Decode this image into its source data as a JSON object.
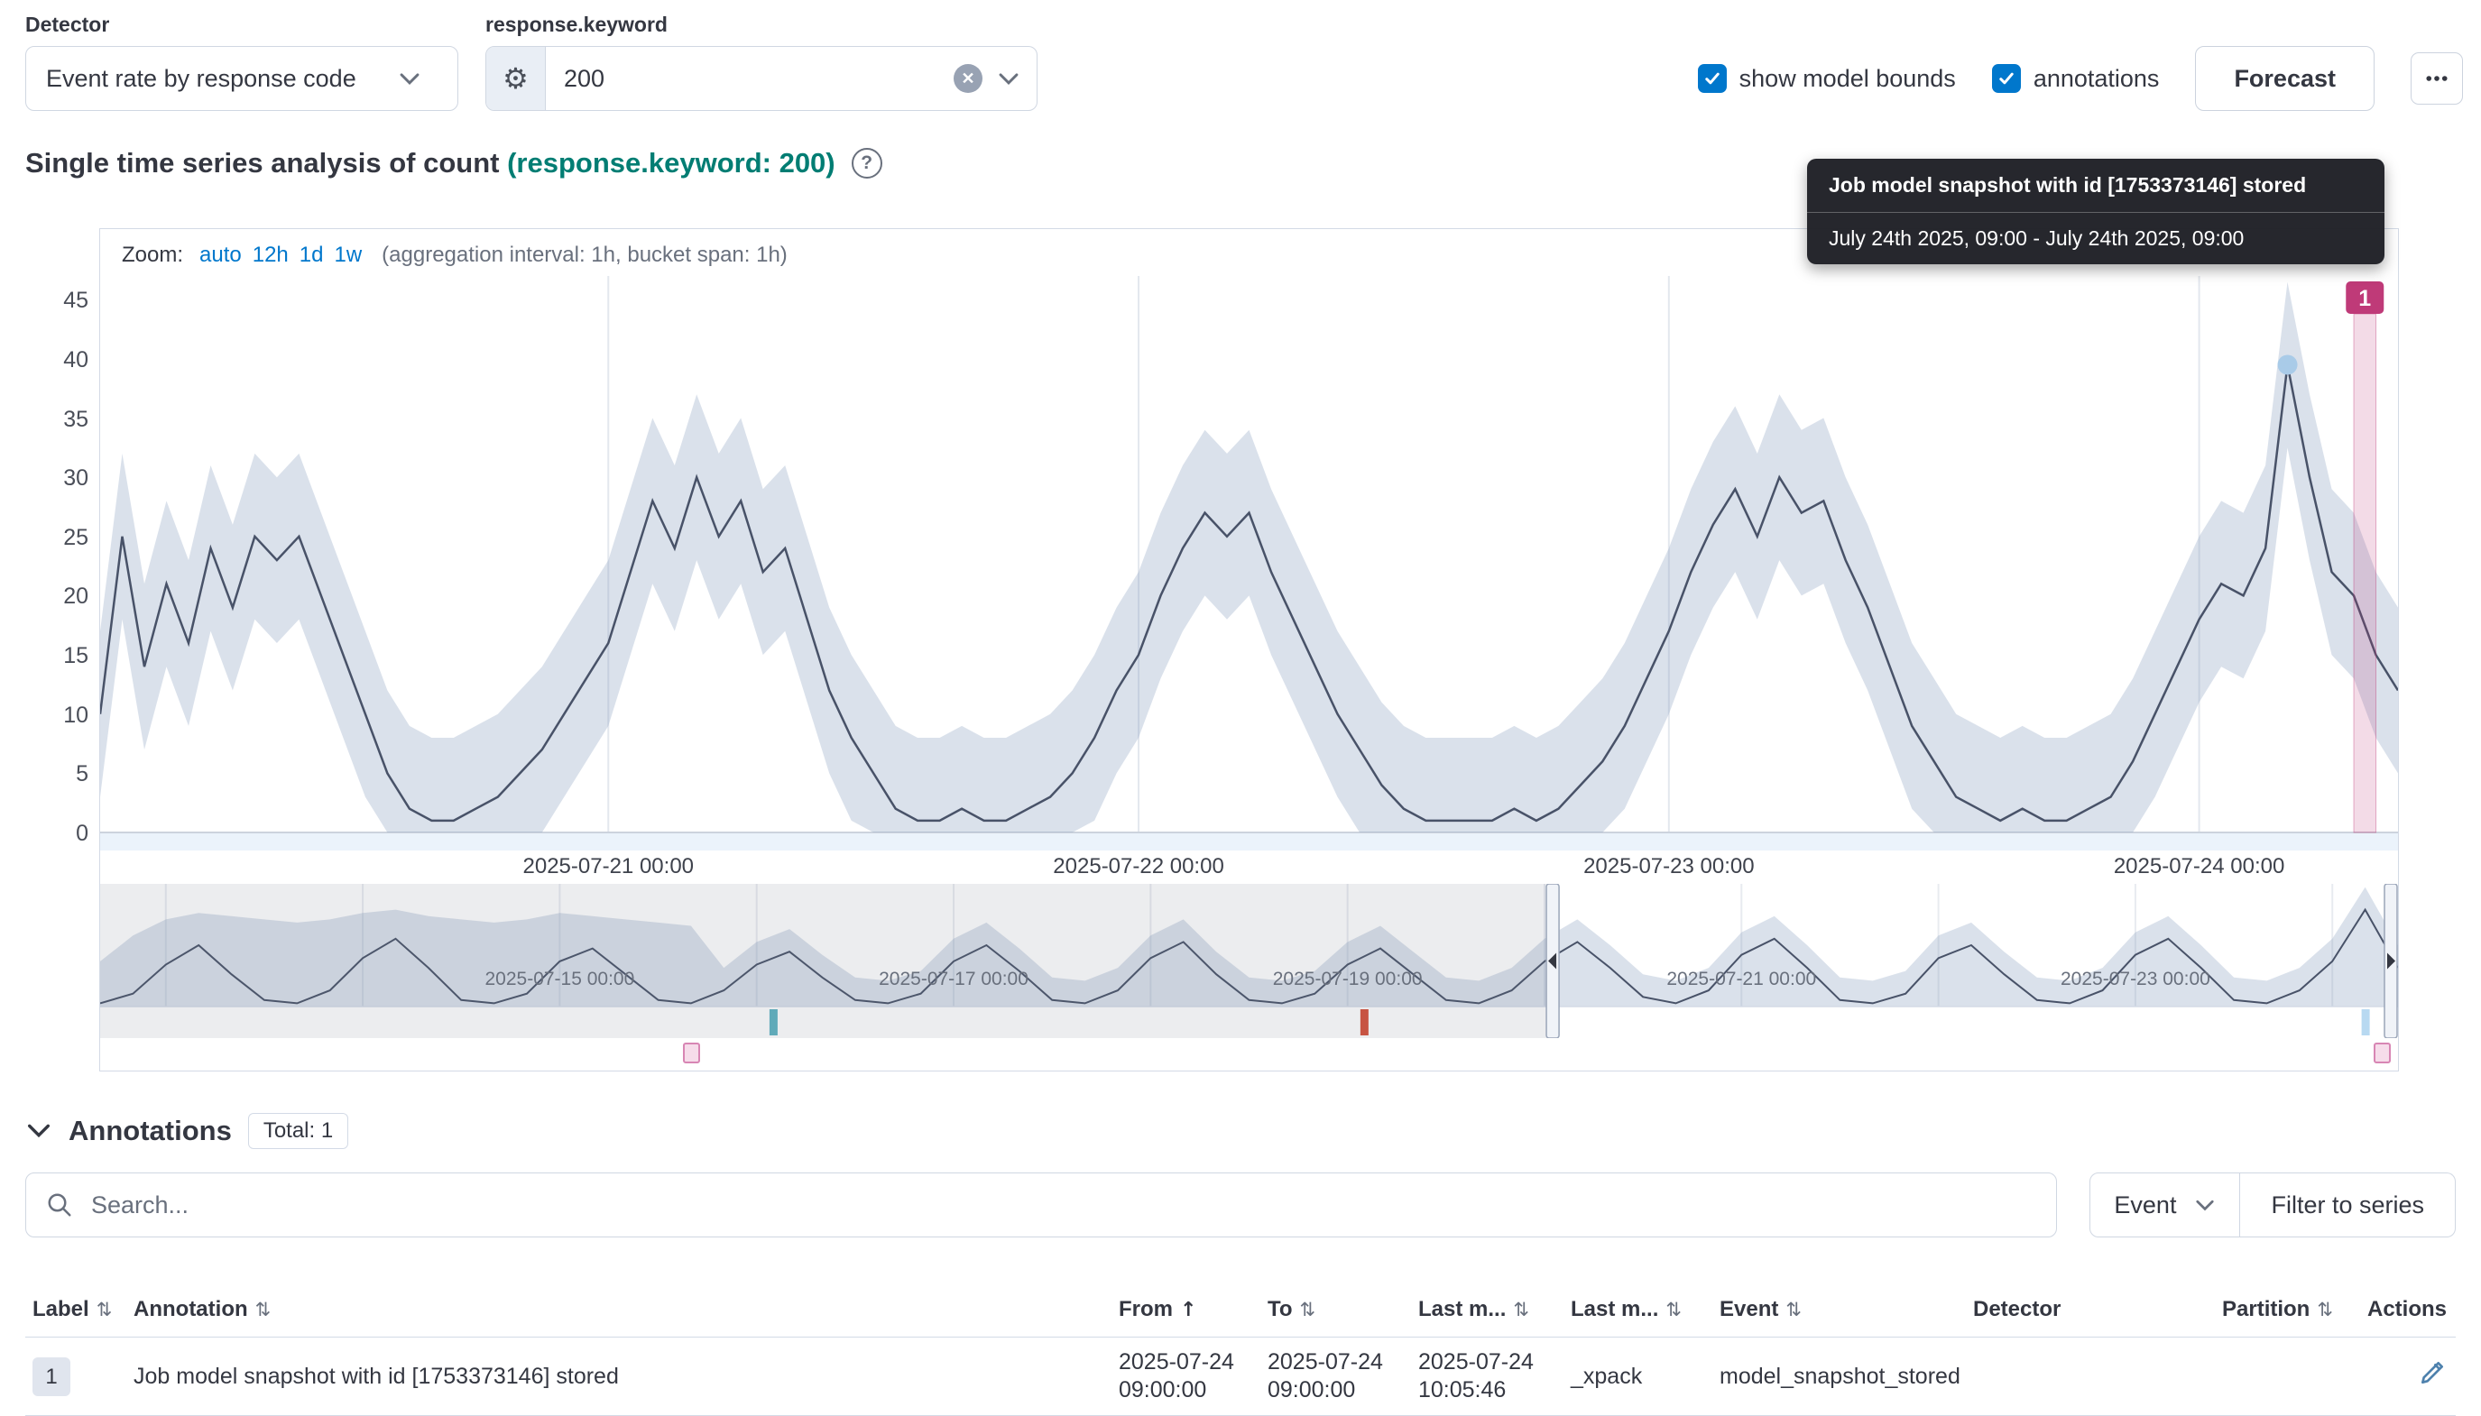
{
  "header": {
    "detector_label": "Detector",
    "detector_value": "Event rate by response code",
    "field_label": "response.keyword",
    "field_value": "200",
    "show_model_bounds_label": "show model bounds",
    "annotations_label": "annotations",
    "forecast_button": "Forecast"
  },
  "title": {
    "main": "Single time series analysis of count",
    "highlight": "(response.keyword: 200)"
  },
  "zoom": {
    "label": "Zoom:",
    "links": [
      "auto",
      "12h",
      "1d",
      "1w"
    ],
    "detail": "(aggregation interval: 1h, bucket span: 1h)"
  },
  "tooltip": {
    "line1": "Job model snapshot with id [1753373146] stored",
    "line2": "July 24th 2025, 09:00 - July 24th 2025, 09:00"
  },
  "chart_data": {
    "type": "line",
    "title": "Single time series analysis of count (response.keyword: 200)",
    "colors": {
      "line": "#485268",
      "bounds": "rgba(134,155,188,0.30)",
      "annotation": "#bf3a78",
      "annotation_fill": "rgba(191,58,120,0.18)",
      "marker": "#a9cbe8"
    },
    "main": {
      "start": "2025-07-20 01:00",
      "interval_hours": 1,
      "ylim": [
        0,
        47
      ],
      "yticks": [
        0,
        5,
        10,
        15,
        20,
        25,
        30,
        35,
        40,
        45
      ],
      "values": [
        10,
        25,
        14,
        21,
        16,
        24,
        19,
        25,
        23,
        25,
        20,
        15,
        10,
        5,
        2,
        1,
        1,
        2,
        3,
        5,
        7,
        10,
        13,
        16,
        22,
        28,
        24,
        30,
        25,
        28,
        22,
        24,
        18,
        12,
        8,
        5,
        2,
        1,
        1,
        2,
        1,
        1,
        2,
        3,
        5,
        8,
        12,
        15,
        20,
        24,
        27,
        25,
        27,
        22,
        18,
        14,
        10,
        7,
        4,
        2,
        1,
        1,
        1,
        1,
        2,
        1,
        2,
        4,
        6,
        9,
        13,
        17,
        22,
        26,
        29,
        25,
        30,
        27,
        28,
        23,
        19,
        14,
        9,
        6,
        3,
        2,
        1,
        2,
        1,
        1,
        2,
        3,
        6,
        10,
        14,
        18,
        21,
        20,
        24,
        39.5,
        30,
        22,
        20,
        15,
        12
      ],
      "bound_margin": 7,
      "xticks": [
        {
          "index": 23,
          "label": "2025-07-21 00:00"
        },
        {
          "index": 47,
          "label": "2025-07-22 00:00"
        },
        {
          "index": 71,
          "label": "2025-07-23 00:00"
        },
        {
          "index": 95,
          "label": "2025-07-24 00:00"
        }
      ],
      "marker": {
        "index": 99,
        "value": 39.5
      },
      "annotation_band": {
        "label": "1",
        "start_index": 102,
        "end_index": 103
      }
    },
    "context": {
      "start": "2025-07-12 16:00",
      "interval_hours": 4,
      "ylim": [
        0,
        38
      ],
      "values": [
        1,
        4,
        13,
        19,
        10,
        2,
        1,
        5,
        15,
        21,
        12,
        2,
        1,
        4,
        14,
        18,
        10,
        2,
        1,
        5,
        13,
        17,
        9,
        2,
        1,
        4,
        14,
        19,
        11,
        2,
        1,
        5,
        15,
        20,
        10,
        2,
        1,
        4,
        13,
        18,
        10,
        2,
        1,
        5,
        14,
        20,
        12,
        3,
        1,
        5,
        16,
        21,
        12,
        2,
        1,
        4,
        15,
        19,
        10,
        2,
        1,
        5,
        16,
        21,
        12,
        2,
        1,
        5,
        14,
        30,
        12
      ],
      "upper": [
        14,
        22,
        27,
        29,
        28,
        27,
        26,
        27,
        29,
        30,
        28,
        27,
        26,
        27,
        29,
        28,
        27,
        26,
        25,
        12,
        20,
        24,
        16,
        9,
        8,
        11,
        21,
        26,
        18,
        9,
        8,
        12,
        22,
        27,
        17,
        9,
        8,
        11,
        20,
        25,
        17,
        9,
        8,
        12,
        21,
        27,
        19,
        10,
        8,
        12,
        23,
        28,
        19,
        9,
        8,
        11,
        22,
        26,
        17,
        9,
        8,
        12,
        23,
        28,
        19,
        9,
        8,
        12,
        21,
        37,
        19
      ],
      "lower": 0,
      "xticks": [
        {
          "index": 14,
          "label": "2025-07-15 00:00"
        },
        {
          "index": 26,
          "label": "2025-07-17 00:00"
        },
        {
          "index": 38,
          "label": "2025-07-19 00:00"
        },
        {
          "index": 50,
          "label": "2025-07-21 00:00"
        },
        {
          "index": 62,
          "label": "2025-07-23 00:00"
        }
      ],
      "day_grid_indices": [
        2,
        8,
        14,
        20,
        26,
        32,
        38,
        44,
        50,
        56,
        62,
        68
      ],
      "selection": {
        "start_index": 44.25,
        "end_index": 70
      },
      "swimlane_marks": [
        {
          "index": 20.5,
          "color": "#5fb3c2"
        },
        {
          "index": 38.5,
          "color": "#d5503a"
        },
        {
          "index": 69,
          "color": "#b8d9f1"
        }
      ],
      "annotation_marks": [
        {
          "index": 18
        },
        {
          "index": 69.5
        }
      ]
    }
  },
  "annotations_section": {
    "title": "Annotations",
    "total_badge": "Total: 1",
    "search_placeholder": "Search...",
    "event_filter": "Event",
    "filter_button": "Filter to series",
    "table": {
      "columns": [
        {
          "label": "Label",
          "sort": "both"
        },
        {
          "label": "Annotation",
          "sort": "both"
        },
        {
          "label": "From",
          "sort": "asc"
        },
        {
          "label": "To",
          "sort": "both"
        },
        {
          "label": "Last m...",
          "sort": "both"
        },
        {
          "label": "Last m...",
          "sort": "both"
        },
        {
          "label": "Event",
          "sort": "both"
        },
        {
          "label": "Detector",
          "sort": null
        },
        {
          "label": "Partition",
          "sort": "both"
        },
        {
          "label": "Actions",
          "sort": null
        }
      ],
      "rows": [
        {
          "label": "1",
          "annotation": "Job model snapshot with id [1753373146] stored",
          "from": "2025-07-24 09:00:00",
          "to": "2025-07-24 09:00:00",
          "last_modified": "2025-07-24 10:05:46",
          "last_modified_by": "_xpack",
          "event": "model_snapshot_stored",
          "detector": "",
          "partition": ""
        }
      ]
    }
  }
}
